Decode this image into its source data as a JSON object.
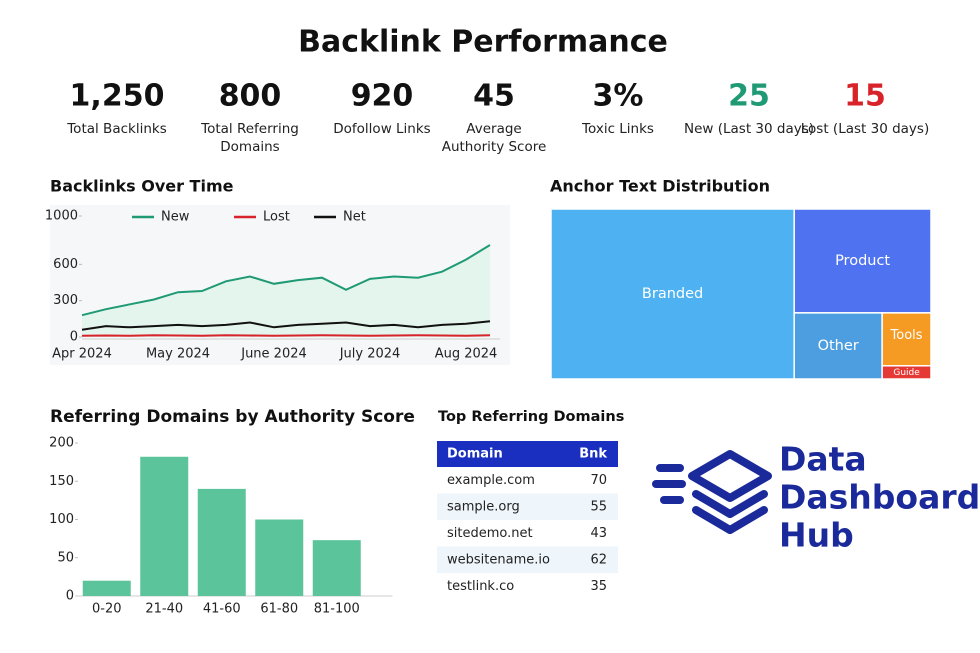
{
  "title": "Backlink Performance",
  "kpis": [
    {
      "value": "1,250",
      "label": "Total Backlinks"
    },
    {
      "value": "800",
      "label": "Total Referring\nDomains"
    },
    {
      "value": "920",
      "label": "Dofollow Links"
    },
    {
      "value": "45",
      "label": "Average\nAuthority Score"
    },
    {
      "value": "3%",
      "label": "Toxic Links"
    },
    {
      "value": "25",
      "label": "New (Last 30 days)",
      "color": "#1f9a74"
    },
    {
      "value": "15",
      "label": "Lost (Last 30 days)",
      "color": "#d8232a"
    }
  ],
  "chart_data": [
    {
      "type": "line",
      "title": "Backlinks Over Time",
      "categories": [
        "Apr 2024",
        null,
        null,
        null,
        "May 2024",
        null,
        null,
        null,
        "June 2024",
        null,
        null,
        null,
        "July 2024",
        null,
        null,
        null,
        "Aug 2024",
        null
      ],
      "series": [
        {
          "name": "New",
          "color": "#1f9a74",
          "values": [
            180,
            230,
            270,
            310,
            370,
            380,
            460,
            500,
            440,
            470,
            490,
            390,
            480,
            500,
            490,
            540,
            640,
            760
          ]
        },
        {
          "name": "Lost",
          "color": "#d8232a",
          "values": [
            10,
            12,
            10,
            14,
            12,
            10,
            14,
            12,
            10,
            12,
            14,
            12,
            10,
            12,
            14,
            12,
            10,
            14
          ]
        },
        {
          "name": "Net",
          "color": "#111111",
          "values": [
            60,
            90,
            80,
            90,
            100,
            90,
            100,
            120,
            80,
            100,
            110,
            120,
            90,
            100,
            80,
            100,
            110,
            130
          ]
        }
      ],
      "ylim": [
        0,
        1000
      ],
      "yticks": [
        0,
        300,
        600,
        1000
      ],
      "area_fill": "#e3f5ec"
    },
    {
      "type": "treemap",
      "title": "Anchor Text Distribution",
      "categories": [
        "Branded",
        "Product",
        "Other",
        "Tools",
        "Guide"
      ],
      "values": [
        64,
        22,
        9,
        4,
        1
      ],
      "colors": [
        "#4db1f2",
        "#4f73f0",
        "#4d9ee0",
        "#f59a23",
        "#e53935"
      ]
    },
    {
      "type": "bar",
      "title": "Referring Domains by Authority Score",
      "categories": [
        "0-20",
        "21-40",
        "41-60",
        "61-80",
        "81-100"
      ],
      "values": [
        20,
        182,
        140,
        100,
        73
      ],
      "color": "#5cc49a",
      "ylim": [
        0,
        200
      ],
      "yticks": [
        0,
        50,
        100,
        150,
        200
      ]
    }
  ],
  "table": {
    "title": "Top Referring Domains",
    "columns": [
      "Domain",
      "Bnk"
    ],
    "rows": [
      [
        "example.com",
        "70"
      ],
      [
        "sample.org",
        "55"
      ],
      [
        "sitedemo.net",
        "43"
      ],
      [
        "websitename.io",
        "62"
      ],
      [
        "testlink.co",
        "35"
      ]
    ]
  },
  "logo": {
    "lines": [
      "Data",
      "Dashboard",
      "Hub"
    ]
  }
}
